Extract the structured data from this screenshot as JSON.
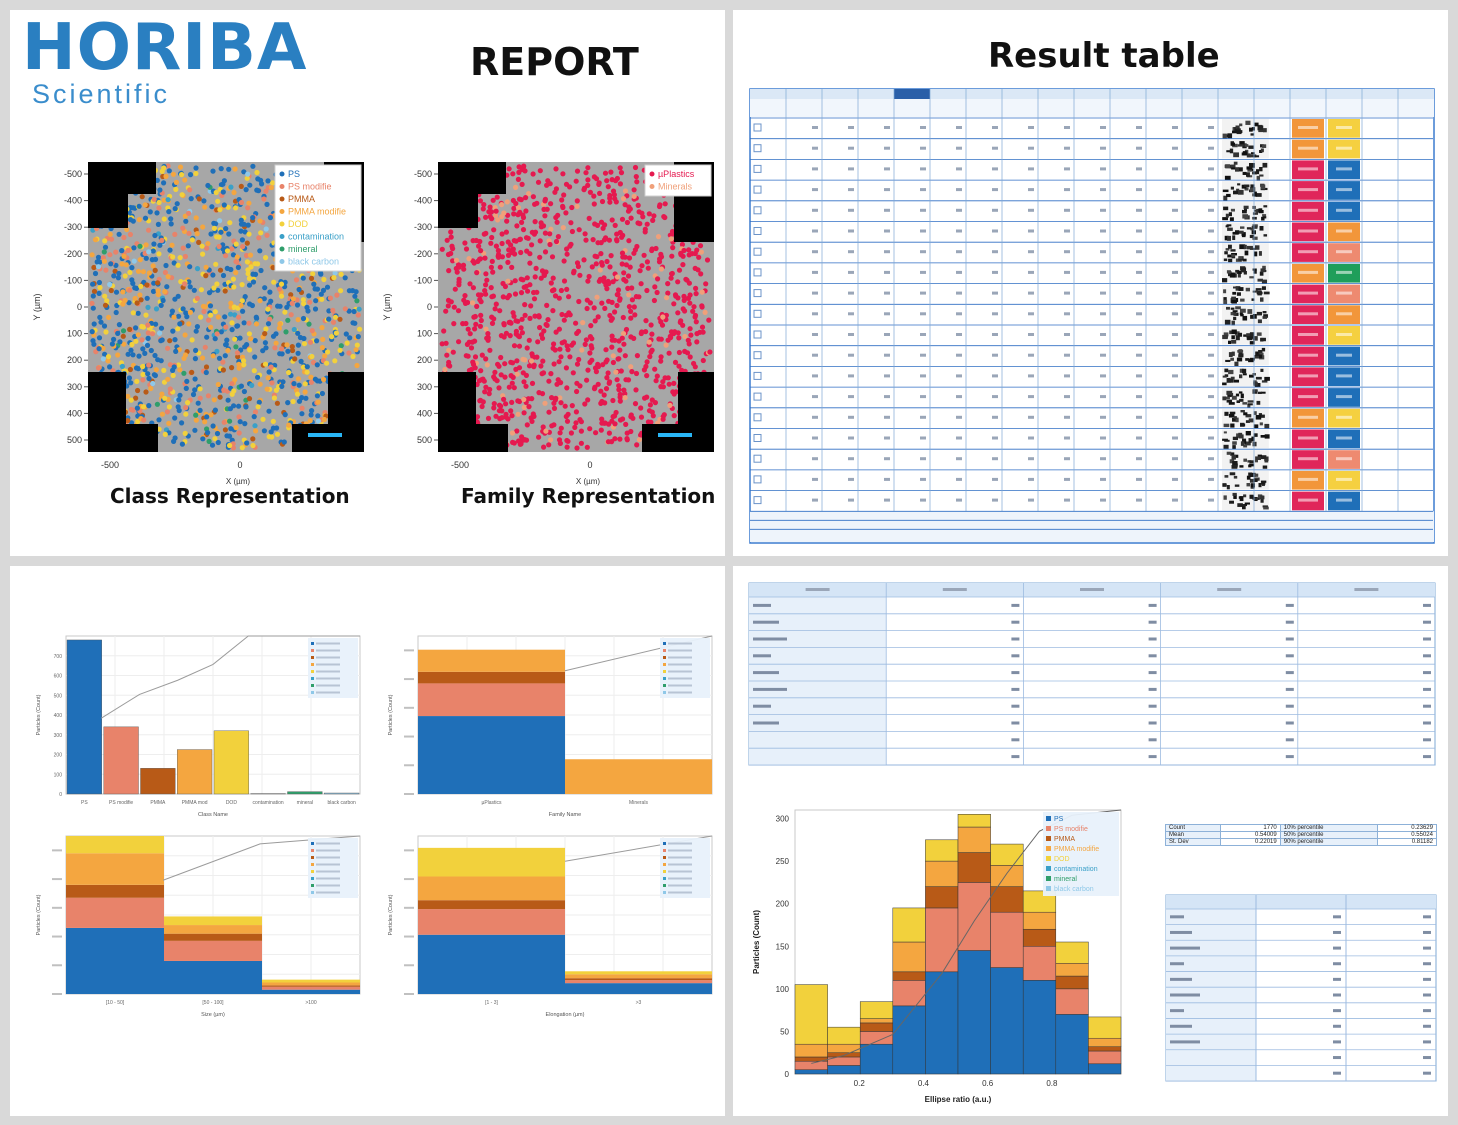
{
  "header": {
    "brand": "HORIBA",
    "brand_sub": "Scientific",
    "report_title": "REPORT",
    "result_title": "Result table"
  },
  "class_map": {
    "caption": "Class Representation",
    "legend": [
      "PS",
      "PS modifie",
      "PMMA",
      "PMMA modifie",
      "DOD",
      "contamination",
      "mineral",
      "black carbon"
    ],
    "colors": [
      "#1f6fb8",
      "#e8836a",
      "#b85a17",
      "#f4a640",
      "#f2d13c",
      "#3aa0c8",
      "#2f9e6b",
      "#8fc8e8"
    ],
    "y_ticks": [
      "-500",
      "-400",
      "-300",
      "-200",
      "-100",
      "0",
      "100",
      "200",
      "300",
      "400",
      "500"
    ],
    "x_ticks": [
      "-500",
      "0"
    ],
    "y_label": "Y (µm)",
    "x_label": "X (µm)"
  },
  "family_map": {
    "caption": "Family Representation",
    "legend": [
      "µPlastics",
      "Minerals"
    ],
    "colors": [
      "#e5194f",
      "#f0a07a"
    ],
    "y_ticks": [
      "-500",
      "-400",
      "-300",
      "-200",
      "-100",
      "0",
      "100",
      "200",
      "300",
      "400",
      "500"
    ],
    "x_ticks": [
      "-500",
      "0"
    ],
    "y_label": "Y (µm)",
    "x_label": "X (µm)"
  },
  "result_table": {
    "row_count": 19,
    "chip_palette": {
      "pink": "#e0265a",
      "orange": "#f2963a",
      "yellow": "#f5d040",
      "blue": "#1f6fb8",
      "salmon": "#ee8a70",
      "green": "#1f9e5a"
    },
    "family_chips": [
      "orange",
      "orange",
      "pink",
      "pink",
      "pink",
      "pink",
      "pink",
      "orange",
      "pink",
      "pink",
      "pink",
      "pink",
      "pink",
      "pink",
      "orange",
      "pink",
      "pink",
      "orange",
      "pink"
    ],
    "class_chips": [
      "yellow",
      "yellow",
      "blue",
      "blue",
      "blue",
      "orange",
      "salmon",
      "green",
      "salmon",
      "orange",
      "yellow",
      "blue",
      "blue",
      "blue",
      "yellow",
      "blue",
      "salmon",
      "yellow",
      "blue"
    ]
  },
  "charts": {
    "class_bar": {
      "type": "bar",
      "categories": [
        "PS",
        "PS modifie",
        "PMMA",
        "PMMA mod",
        "DOD",
        "contamination",
        "mineral",
        "black carbon"
      ],
      "values": [
        780,
        340,
        130,
        225,
        320,
        2,
        12,
        5
      ],
      "colors": [
        "#1f6fb8",
        "#e8836a",
        "#b85a17",
        "#f4a640",
        "#f2d13c",
        "#3aa0c8",
        "#2f9e6b",
        "#8fc8e8"
      ],
      "ylim": [
        0,
        800
      ],
      "y_ticks": [
        "0",
        "100",
        "200",
        "300",
        "400",
        "500",
        "600",
        "700"
      ],
      "xlabel": "Class Name",
      "ylabel": "Particles (Count)"
    },
    "family_bar": {
      "type": "bar",
      "categories": [
        "µPlastics",
        "Minerals"
      ],
      "series": [
        {
          "name": "PS",
          "values": [
            740,
            0
          ]
        },
        {
          "name": "PS modifie",
          "values": [
            310,
            0
          ]
        },
        {
          "name": "PMMA",
          "values": [
            110,
            0
          ]
        },
        {
          "name": "PMMA modifie",
          "values": [
            210,
            330
          ]
        }
      ],
      "colors": [
        "#1f6fb8",
        "#e8836a",
        "#b85a17",
        "#f4a640",
        "#f2d13c"
      ],
      "ylim": [
        0,
        1500
      ],
      "xlabel": "Family Name",
      "ylabel": "Particles (Count)"
    },
    "size_bar": {
      "type": "bar",
      "categories": [
        "[10 - 50]",
        "[50 - 100]",
        ">100"
      ],
      "series": [
        {
          "name": "PS",
          "values": [
            230,
            115,
            15
          ]
        },
        {
          "name": "PS modifie",
          "values": [
            105,
            70,
            10
          ]
        },
        {
          "name": "PMMA",
          "values": [
            45,
            25,
            5
          ]
        },
        {
          "name": "PMMA modifie",
          "values": [
            110,
            30,
            10
          ]
        },
        {
          "name": "DOD",
          "values": [
            60,
            30,
            10
          ]
        }
      ],
      "colors": [
        "#1f6fb8",
        "#e8836a",
        "#b85a17",
        "#f4a640",
        "#f2d13c"
      ],
      "ylim": [
        0,
        550
      ],
      "xlabel": "Size (µm)",
      "ylabel": "Particles (Count)"
    },
    "ratio_bar": {
      "type": "bar",
      "categories": [
        "[1 - 3]",
        ">3"
      ],
      "series": [
        {
          "name": "PS",
          "values": [
            600,
            110
          ]
        },
        {
          "name": "PS modifie",
          "values": [
            260,
            30
          ]
        },
        {
          "name": "PMMA",
          "values": [
            90,
            20
          ]
        },
        {
          "name": "PMMA modifie",
          "values": [
            240,
            40
          ]
        },
        {
          "name": "DOD",
          "values": [
            290,
            30
          ]
        }
      ],
      "colors": [
        "#1f6fb8",
        "#e8836a",
        "#b85a17",
        "#f4a640",
        "#f2d13c"
      ],
      "ylim": [
        0,
        1600
      ],
      "xlabel": "Elongation (µm)",
      "ylabel": "Particles (Count)"
    },
    "ellipse_hist": {
      "type": "bar",
      "x": [
        0.05,
        0.15,
        0.25,
        0.35,
        0.45,
        0.55,
        0.65,
        0.75,
        0.85,
        0.95
      ],
      "series": [
        {
          "name": "PS",
          "values": [
            5,
            10,
            35,
            80,
            120,
            145,
            125,
            110,
            70,
            12
          ]
        },
        {
          "name": "PS modifie",
          "values": [
            10,
            10,
            15,
            30,
            75,
            80,
            65,
            40,
            30,
            15
          ]
        },
        {
          "name": "PMMA",
          "values": [
            5,
            5,
            10,
            10,
            25,
            35,
            30,
            20,
            15,
            5
          ]
        },
        {
          "name": "PMMA modifie",
          "values": [
            15,
            10,
            5,
            35,
            30,
            30,
            25,
            20,
            15,
            10
          ]
        },
        {
          "name": "DOD",
          "values": [
            70,
            20,
            20,
            40,
            25,
            15,
            25,
            25,
            25,
            25
          ]
        }
      ],
      "colors": [
        "#1f6fb8",
        "#e8836a",
        "#b85a17",
        "#f4a640",
        "#f2d13c"
      ],
      "ylim": [
        0,
        310
      ],
      "y_ticks": [
        "0",
        "50",
        "100",
        "150",
        "200",
        "250",
        "300"
      ],
      "x_ticks": [
        "0.2",
        "0.4",
        "0.6",
        "0.8"
      ],
      "xlabel": "Ellipse ratio (a.u.)",
      "ylabel": "Particles (Count)",
      "legend": [
        "PS",
        "PS modifie",
        "PMMA",
        "PMMA modifie",
        "DOD",
        "contamination",
        "mineral",
        "black carbon"
      ],
      "legend_colors": [
        "#1f6fb8",
        "#e8836a",
        "#b85a17",
        "#f4a640",
        "#f2d13c",
        "#3aa0c8",
        "#2f9e6b",
        "#8fc8e8"
      ]
    }
  },
  "stats": {
    "rows": [
      {
        "label": "Count",
        "value": "1770",
        "pct_label": "10% percentile",
        "pct_value": "0.23629"
      },
      {
        "label": "Mean",
        "value": "0.54009",
        "pct_label": "50% percentile",
        "pct_value": "0.55024"
      },
      {
        "label": "St. Dev",
        "value": "0.22019",
        "pct_label": "90% percentile",
        "pct_value": "0.81182"
      }
    ]
  }
}
